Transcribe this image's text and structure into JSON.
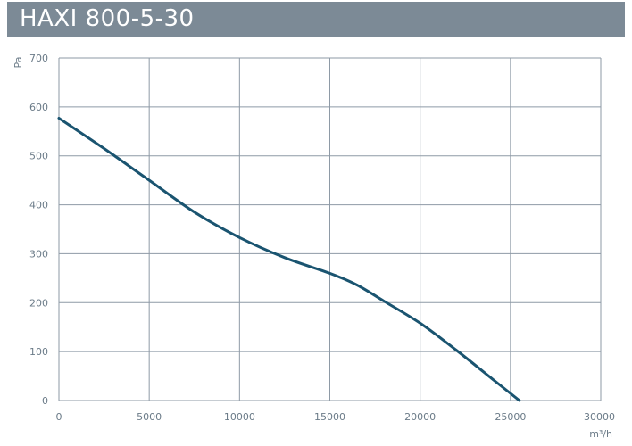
{
  "header": {
    "title": "HAXI 800-5-30"
  },
  "colors": {
    "title_bar": "#7c8a96",
    "grid": "#8e9aa6",
    "curve": "#1a5470",
    "tick_text": "#6b7b88"
  },
  "chart_data": {
    "type": "line",
    "title": "HAXI 800-5-30",
    "xlabel": "m³/h",
    "ylabel": "Pa",
    "xlim": [
      0,
      30000
    ],
    "ylim": [
      0,
      700
    ],
    "x_ticks": [
      0,
      5000,
      10000,
      15000,
      20000,
      25000,
      30000
    ],
    "y_ticks": [
      0,
      100,
      200,
      300,
      400,
      500,
      600,
      700
    ],
    "x_tick_labels": [
      "0",
      "5000",
      "10000",
      "15000",
      "20000",
      "25000",
      "30000"
    ],
    "y_tick_labels": [
      "0",
      "100",
      "200",
      "300",
      "400",
      "500",
      "600",
      "700"
    ],
    "grid": true,
    "series": [
      {
        "x": [
          0,
          2500,
          5000,
          7500,
          10000,
          12500,
          15000,
          16500,
          18000,
          20000,
          22000,
          24000,
          25500
        ],
        "values": [
          577,
          515,
          450,
          385,
          333,
          292,
          260,
          236,
          203,
          158,
          103,
          44,
          0
        ]
      }
    ]
  }
}
